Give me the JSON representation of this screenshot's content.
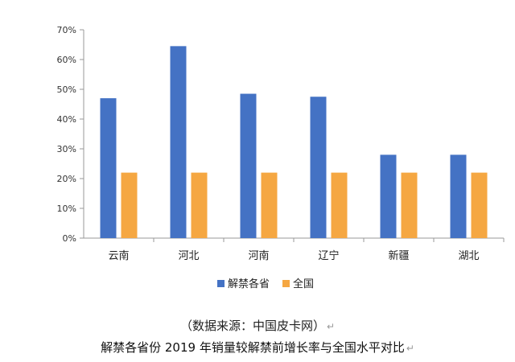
{
  "chart_data": {
    "type": "bar",
    "categories": [
      "云南",
      "河北",
      "河南",
      "辽宁",
      "新疆",
      "湖北"
    ],
    "series": [
      {
        "name": "解禁各省",
        "color": "#4472C4",
        "values": [
          47,
          64.5,
          48.5,
          47.5,
          28,
          28
        ]
      },
      {
        "name": "全国",
        "color": "#F5A742",
        "values": [
          22,
          22,
          22,
          22,
          22,
          22
        ]
      }
    ],
    "ylim": [
      0,
      70
    ],
    "yticks": [
      0,
      10,
      20,
      30,
      40,
      50,
      60,
      70
    ],
    "ytick_labels": [
      "0%",
      "10%",
      "20%",
      "30%",
      "40%",
      "50%",
      "60%",
      "70%"
    ],
    "grid": false,
    "legend_position": "bottom-center",
    "title": "",
    "xlabel": "",
    "ylabel": ""
  },
  "caption": {
    "source": "（数据来源：中国皮卡网）",
    "title": "解禁各省份 2019 年销量较解禁前增长率与全国水平对比",
    "return_mark": "↵"
  }
}
